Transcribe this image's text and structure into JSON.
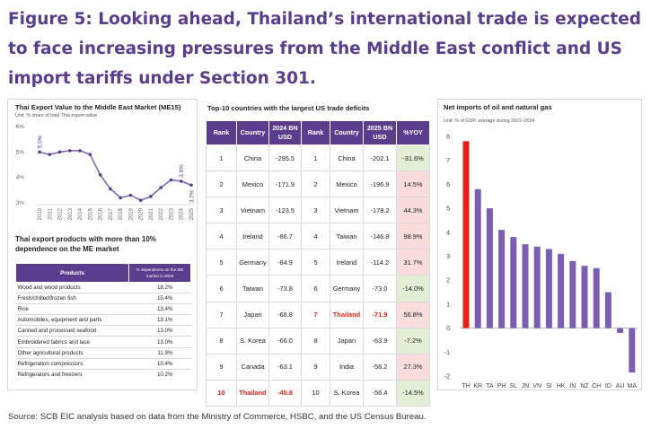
{
  "figure_title": "Figure 5: Looking ahead, Thailand’s international trade is expected to face increasing pressures from the Middle East conflict and US import tariffs under Section 301.",
  "source": "Source: SCB EIC analysis based on data from the Ministry of Commerce, HSBC, and the US Census Bureau.",
  "colors": {
    "accent": "#5a3d8c",
    "highlight": "#e2231a",
    "neg_cell": "#e2efd6",
    "pos_cell": "#f9dcdc",
    "series_line": "#7b5eb3"
  },
  "left_panel": {
    "title": "Thai Export Value to the Middle East Market (ME15)",
    "unit": "Unit: % share of total Thai export value",
    "table_title": "Thai export products with more than 10% dependence on the ME market",
    "table_headers": [
      "Products",
      "% dependence on the ME market in 2025"
    ],
    "table_rows": [
      [
        "Wood and wood products",
        "18.2%"
      ],
      [
        "Fresh/chilled/frozen fish",
        "15.4%"
      ],
      [
        "Rice",
        "13.4%"
      ],
      [
        "Automobiles, equipment and parts",
        "13.1%"
      ],
      [
        "Canned and processed seafood",
        "13.0%"
      ],
      [
        "Embroidered fabrics and lace",
        "13.0%"
      ],
      [
        "Other agricultural products",
        "11.9%"
      ],
      [
        "Refrigeration compressors",
        "10.4%"
      ],
      [
        "Refrigerators and freezers",
        "10.2%"
      ]
    ]
  },
  "middle_panel": {
    "title": "Top-10 countries with the largest US trade deficits",
    "headers": [
      "Rank",
      "Country",
      "2024 BN USD",
      "Rank",
      "Country",
      "2025 BN USD",
      "%YOY"
    ],
    "rows": [
      {
        "r1": "1",
        "c1": "China",
        "v1": "-295.5",
        "r2": "1",
        "c2": "China",
        "v2": "-202.1",
        "yoy": "-31.6%",
        "sign": "neg",
        "hl1": false,
        "hl2": false
      },
      {
        "r1": "2",
        "c1": "Mexico",
        "v1": "-171.9",
        "r2": "2",
        "c2": "Mexico",
        "v2": "-196.9",
        "yoy": "14.5%",
        "sign": "pos",
        "hl1": false,
        "hl2": false
      },
      {
        "r1": "3",
        "c1": "Vietnam",
        "v1": "-123.5",
        "r2": "3",
        "c2": "Vietnam",
        "v2": "-178.2",
        "yoy": "44.3%",
        "sign": "pos",
        "hl1": false,
        "hl2": false
      },
      {
        "r1": "4",
        "c1": "Ireland",
        "v1": "-86.7",
        "r2": "4",
        "c2": "Taiwan",
        "v2": "-146.8",
        "yoy": "98.9%",
        "sign": "pos",
        "hl1": false,
        "hl2": false
      },
      {
        "r1": "5",
        "c1": "Germany",
        "v1": "-84.9",
        "r2": "5",
        "c2": "Ireland",
        "v2": "-114.2",
        "yoy": "31.7%",
        "sign": "pos",
        "hl1": false,
        "hl2": false
      },
      {
        "r1": "6",
        "c1": "Taiwan",
        "v1": "-73.8",
        "r2": "6",
        "c2": "Germany",
        "v2": "-73.0",
        "yoy": "-14.0%",
        "sign": "neg",
        "hl1": false,
        "hl2": false
      },
      {
        "r1": "7",
        "c1": "Japan",
        "v1": "-68.8",
        "r2": "7",
        "c2": "Thailand",
        "v2": "-71.9",
        "yoy": "56.8%",
        "sign": "pos",
        "hl1": false,
        "hl2": true
      },
      {
        "r1": "8",
        "c1": "S. Korea",
        "v1": "-66.0",
        "r2": "8",
        "c2": "Japan",
        "v2": "-63.9",
        "yoy": "-7.2%",
        "sign": "neg",
        "hl1": false,
        "hl2": false
      },
      {
        "r1": "9",
        "c1": "Canada",
        "v1": "-63.1",
        "r2": "9",
        "c2": "India",
        "v2": "-58.2",
        "yoy": "27.3%",
        "sign": "pos",
        "hl1": false,
        "hl2": false
      },
      {
        "r1": "10",
        "c1": "Thailand",
        "v1": "-45.8",
        "r2": "10",
        "c2": "S. Korea",
        "v2": "-56.4",
        "yoy": "-14.5%",
        "sign": "neg",
        "hl1": true,
        "hl2": false
      }
    ]
  },
  "right_panel": {
    "title": "Net imports of oil and natural gas",
    "unit": "Unit: % of GDP, average during 2022–2024"
  },
  "chart_data": [
    {
      "type": "line",
      "title": "Thai Export Value to the Middle East Market (ME15)",
      "ylabel": "Unit: % share of total Thai export value",
      "ylim": [
        3,
        6
      ],
      "yticks": [
        "3%",
        "4%",
        "5%",
        "6%"
      ],
      "x": [
        "2010",
        "2011",
        "2012",
        "2013",
        "2014",
        "2015",
        "2016",
        "2017",
        "2018",
        "2019",
        "2020",
        "2021",
        "2022",
        "2023",
        "2024",
        "2025"
      ],
      "series": [
        {
          "values": [
            5.0,
            4.9,
            5.0,
            5.05,
            5.05,
            4.9,
            4.1,
            3.55,
            3.2,
            3.3,
            3.1,
            3.25,
            3.6,
            3.9,
            3.85,
            3.7
          ]
        }
      ],
      "annotations": [
        "5.0%",
        "3.9%",
        "3.7%"
      ],
      "grid": false
    },
    {
      "type": "bar",
      "title": "Net imports of oil and natural gas",
      "ylabel": "Unit: % of GDP, average during 2022–2024",
      "ylim": [
        -2,
        8
      ],
      "yticks": [
        "-2",
        "-1",
        "0",
        "1",
        "2",
        "3",
        "4",
        "5",
        "6",
        "7",
        "8"
      ],
      "categories": [
        "TH",
        "KR",
        "TA",
        "PH",
        "SL",
        "JN",
        "VN",
        "SI",
        "HK",
        "IN",
        "NZ",
        "CH",
        "ID",
        "AU",
        "MA"
      ],
      "values": [
        7.8,
        5.8,
        5.0,
        4.1,
        3.8,
        3.5,
        3.4,
        3.3,
        3.1,
        2.8,
        2.6,
        2.5,
        1.5,
        -0.2,
        -1.85
      ],
      "highlight": "TH",
      "grid": false
    }
  ]
}
